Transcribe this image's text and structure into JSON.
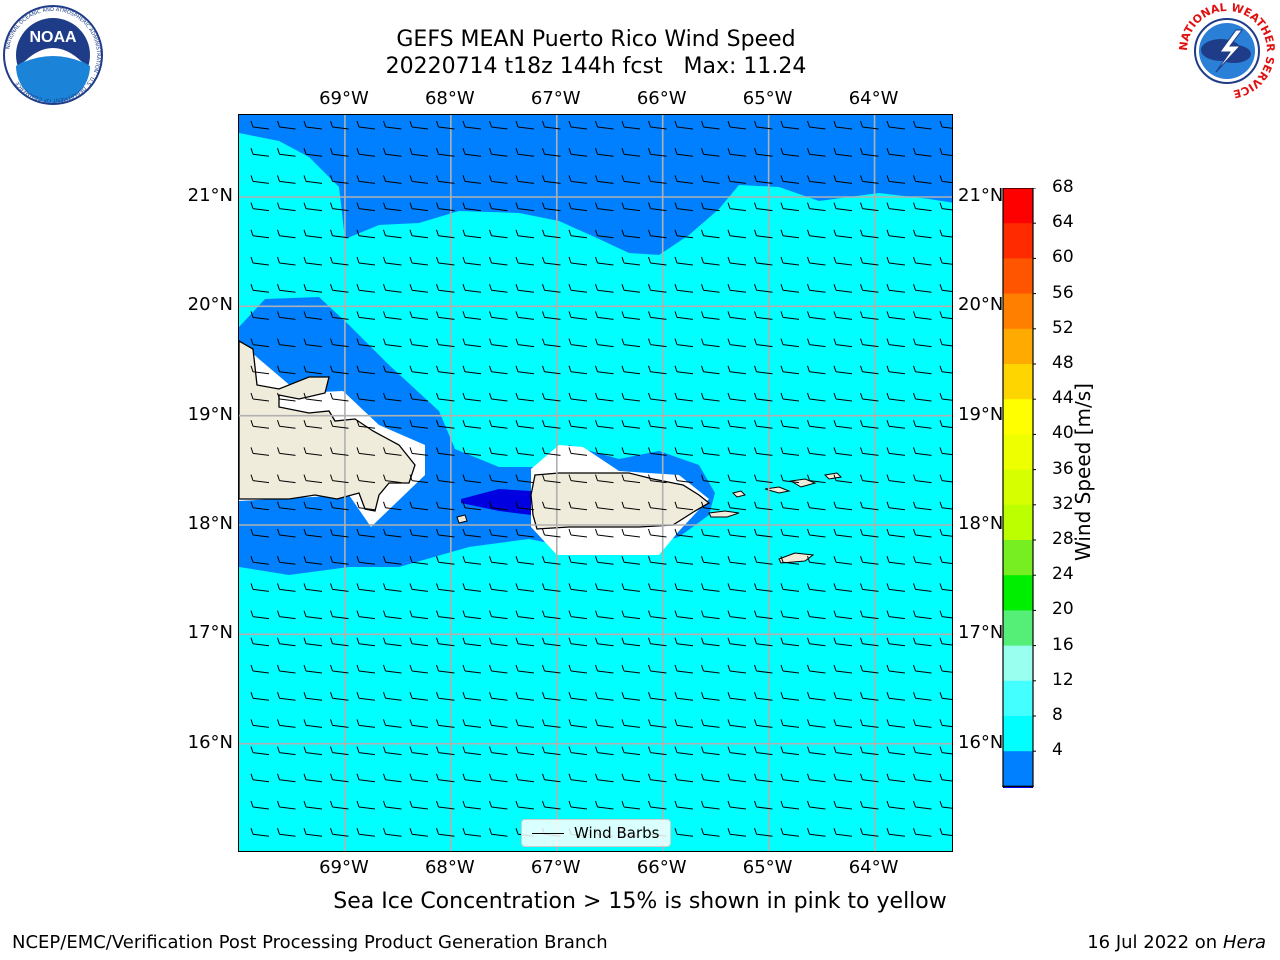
{
  "title": {
    "line1": "GEFS MEAN Puerto Rico Wind Speed",
    "line2": "20220714 t18z 144h fcst   Max: 11.24"
  },
  "logos": {
    "left": {
      "text": "NOAA",
      "ring_text": "NATIONAL OCEANIC AND ATMOSPHERIC ADMINISTRATION · U.S. DEPARTMENT OF COMMERCE",
      "icon": "noaa-logo"
    },
    "right": {
      "ring_text": "NATIONAL WEATHER SERVICE",
      "icon": "nws-logo"
    }
  },
  "map": {
    "lon_ticks": [
      "69°W",
      "68°W",
      "67°W",
      "66°W",
      "65°W",
      "64°W"
    ],
    "lat_ticks": [
      "21°N",
      "20°N",
      "19°N",
      "18°N",
      "17°N",
      "16°N"
    ],
    "lon_values": [
      -69,
      -68,
      -67,
      -66,
      -65,
      -64
    ],
    "lat_values": [
      21,
      20,
      19,
      18,
      17,
      16
    ],
    "lon_range": [
      -70,
      -63.25
    ],
    "lat_range": [
      15,
      21.75
    ],
    "grid": true,
    "legend": {
      "label": "Wind Barbs"
    },
    "colors": {
      "ocean_light": "#00ffff",
      "ocean_mid": "#0080ff",
      "ocean_dark": "#0000e0",
      "land": "#f0ecdc",
      "mask": "#ffffff"
    }
  },
  "colorbar": {
    "title": "Wind Speed [m/s]",
    "ticks": [
      "68",
      "64",
      "60",
      "56",
      "52",
      "48",
      "44",
      "40",
      "36",
      "32",
      "28",
      "24",
      "20",
      "16",
      "12",
      "8",
      "4"
    ],
    "colors": [
      "#ff0000",
      "#ff2a00",
      "#ff5500",
      "#ff8000",
      "#ffaa00",
      "#ffd500",
      "#ffff00",
      "#eeff00",
      "#d6ff00",
      "#bbff00",
      "#77ee22",
      "#00ee00",
      "#55ee77",
      "#99ffee",
      "#44ffff",
      "#00ffff",
      "#0080ff"
    ],
    "extend_color": "#0000ff"
  },
  "subtitle": "Sea Ice Concentration > 15% is shown in pink to yellow",
  "footer": {
    "left": "NCEP/EMC/Verification Post Processing Product Generation Branch",
    "right_date": "16 Jul 2022 on ",
    "right_host": "Hera"
  }
}
